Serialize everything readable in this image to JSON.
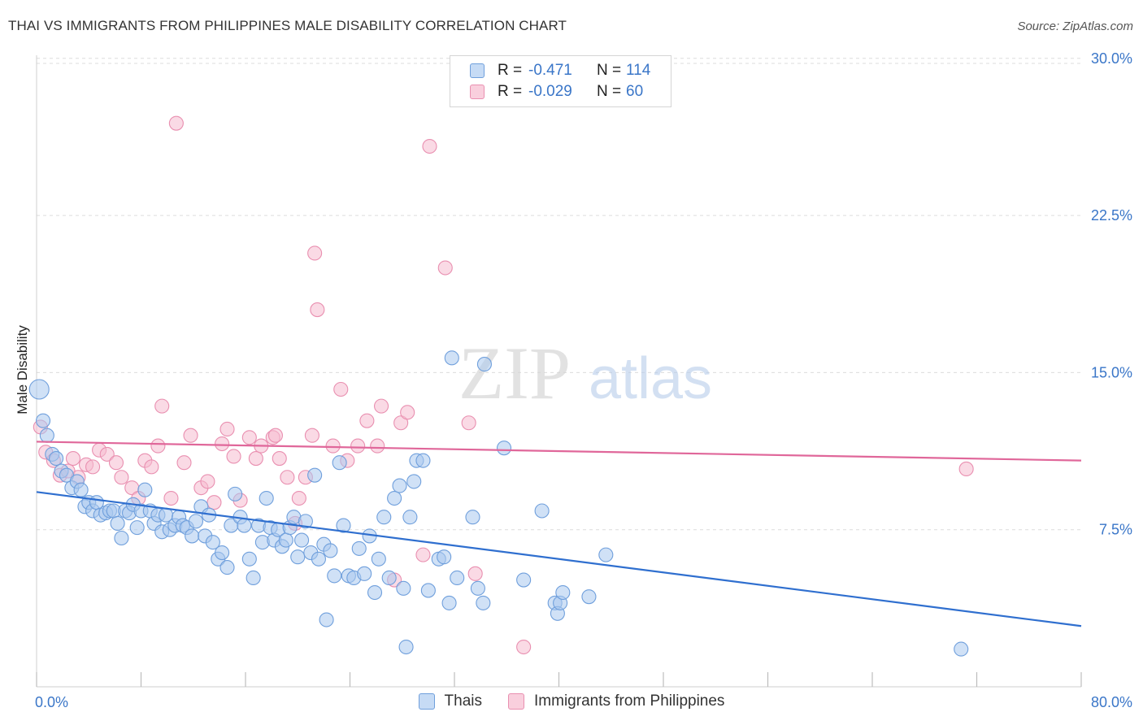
{
  "header": {
    "title": "THAI VS IMMIGRANTS FROM PHILIPPINES MALE DISABILITY CORRELATION CHART",
    "source": "Source: ZipAtlas.com"
  },
  "watermark": {
    "zip": "ZIP",
    "atlas": "atlas"
  },
  "legend": {
    "rows": [
      {
        "r_label": "R =",
        "r_value": "-0.471",
        "n_label": "N =",
        "n_value": "114"
      },
      {
        "r_label": "R =",
        "r_value": "-0.029",
        "n_label": "N =",
        "n_value": "60"
      }
    ]
  },
  "colors": {
    "thais_fill": "#aac8ee",
    "thais_stroke": "#6f9fdc",
    "thais_line": "#2f6fcf",
    "phil_fill": "#f6bcd0",
    "phil_stroke": "#e98fb0",
    "phil_line": "#e0679a",
    "grid": "#dcdcdc",
    "axis_text": "#3a76c8"
  },
  "chart_data": {
    "type": "scatter",
    "title": "THAI VS IMMIGRANTS FROM PHILIPPINES MALE DISABILITY CORRELATION CHART",
    "xlabel": "",
    "ylabel": "Male Disability",
    "xlim": [
      0,
      80
    ],
    "ylim": [
      0,
      31
    ],
    "x_tick_labels": [
      "0.0%",
      "80.0%"
    ],
    "y_ticks": [
      7.5,
      15.0,
      22.5,
      30.0
    ],
    "y_tick_labels": [
      "7.5%",
      "15.0%",
      "22.5%",
      "30.0%"
    ],
    "grid": "horizontal dashed",
    "legend_position": "top-center",
    "series": [
      {
        "name": "Thais",
        "trend": {
          "x": [
            0,
            80
          ],
          "y": [
            9.3,
            2.9
          ]
        },
        "points": [
          [
            0.2,
            14.2
          ],
          [
            0.5,
            12.7
          ],
          [
            0.8,
            12.0
          ],
          [
            1.2,
            11.1
          ],
          [
            1.5,
            10.9
          ],
          [
            1.9,
            10.3
          ],
          [
            2.3,
            10.1
          ],
          [
            2.7,
            9.5
          ],
          [
            3.1,
            9.8
          ],
          [
            3.4,
            9.4
          ],
          [
            3.7,
            8.6
          ],
          [
            4.0,
            8.8
          ],
          [
            4.3,
            8.4
          ],
          [
            4.6,
            8.8
          ],
          [
            4.9,
            8.2
          ],
          [
            5.3,
            8.3
          ],
          [
            5.6,
            8.4
          ],
          [
            5.9,
            8.4
          ],
          [
            6.2,
            7.8
          ],
          [
            6.5,
            7.1
          ],
          [
            6.8,
            8.4
          ],
          [
            7.1,
            8.3
          ],
          [
            7.4,
            8.7
          ],
          [
            7.7,
            7.6
          ],
          [
            8.0,
            8.4
          ],
          [
            8.3,
            9.4
          ],
          [
            8.7,
            8.4
          ],
          [
            9.0,
            7.8
          ],
          [
            9.3,
            8.2
          ],
          [
            9.6,
            7.4
          ],
          [
            9.9,
            8.2
          ],
          [
            10.2,
            7.5
          ],
          [
            10.6,
            7.7
          ],
          [
            10.9,
            8.1
          ],
          [
            11.2,
            7.7
          ],
          [
            11.5,
            7.6
          ],
          [
            11.9,
            7.2
          ],
          [
            12.2,
            7.9
          ],
          [
            12.6,
            8.6
          ],
          [
            12.9,
            7.2
          ],
          [
            13.2,
            8.2
          ],
          [
            13.5,
            6.9
          ],
          [
            13.9,
            6.1
          ],
          [
            14.2,
            6.4
          ],
          [
            14.6,
            5.7
          ],
          [
            14.9,
            7.7
          ],
          [
            15.2,
            9.2
          ],
          [
            15.6,
            8.1
          ],
          [
            15.9,
            7.7
          ],
          [
            16.3,
            6.1
          ],
          [
            16.6,
            5.2
          ],
          [
            17.0,
            7.7
          ],
          [
            17.3,
            6.9
          ],
          [
            17.6,
            9.0
          ],
          [
            17.9,
            7.6
          ],
          [
            18.2,
            7.0
          ],
          [
            18.5,
            7.5
          ],
          [
            18.8,
            6.7
          ],
          [
            19.1,
            7.0
          ],
          [
            19.4,
            7.6
          ],
          [
            19.7,
            8.1
          ],
          [
            20.0,
            6.2
          ],
          [
            20.3,
            7.0
          ],
          [
            20.6,
            7.9
          ],
          [
            21.0,
            6.4
          ],
          [
            21.3,
            10.1
          ],
          [
            21.6,
            6.1
          ],
          [
            22.0,
            6.8
          ],
          [
            22.2,
            3.2
          ],
          [
            22.5,
            6.5
          ],
          [
            22.8,
            5.3
          ],
          [
            23.2,
            10.7
          ],
          [
            23.5,
            7.7
          ],
          [
            23.9,
            5.3
          ],
          [
            24.3,
            5.2
          ],
          [
            24.7,
            6.6
          ],
          [
            25.1,
            5.4
          ],
          [
            25.5,
            7.2
          ],
          [
            25.9,
            4.5
          ],
          [
            26.2,
            6.1
          ],
          [
            26.6,
            8.1
          ],
          [
            27.0,
            5.2
          ],
          [
            27.4,
            9.0
          ],
          [
            27.8,
            9.6
          ],
          [
            28.1,
            4.7
          ],
          [
            28.3,
            1.9
          ],
          [
            28.6,
            8.1
          ],
          [
            28.9,
            9.8
          ],
          [
            29.1,
            10.8
          ],
          [
            29.6,
            10.8
          ],
          [
            30.0,
            4.6
          ],
          [
            30.8,
            6.1
          ],
          [
            31.2,
            6.2
          ],
          [
            31.6,
            4.0
          ],
          [
            31.8,
            15.7
          ],
          [
            32.2,
            5.2
          ],
          [
            33.4,
            8.1
          ],
          [
            33.8,
            4.7
          ],
          [
            34.2,
            4.0
          ],
          [
            34.3,
            15.4
          ],
          [
            35.8,
            11.4
          ],
          [
            37.3,
            5.1
          ],
          [
            38.7,
            8.4
          ],
          [
            39.7,
            4.0
          ],
          [
            39.9,
            3.5
          ],
          [
            40.1,
            4.0
          ],
          [
            40.3,
            4.5
          ],
          [
            42.3,
            4.3
          ],
          [
            43.6,
            6.3
          ],
          [
            70.8,
            1.8
          ]
        ]
      },
      {
        "name": "Immigrants from Philippines",
        "trend": {
          "x": [
            0,
            80
          ],
          "y": [
            11.7,
            10.8
          ]
        },
        "points": [
          [
            0.3,
            12.4
          ],
          [
            0.7,
            11.2
          ],
          [
            1.3,
            10.8
          ],
          [
            1.8,
            10.1
          ],
          [
            2.4,
            10.3
          ],
          [
            2.8,
            10.9
          ],
          [
            3.2,
            10.0
          ],
          [
            3.8,
            10.6
          ],
          [
            4.3,
            10.5
          ],
          [
            4.8,
            11.3
          ],
          [
            5.4,
            11.1
          ],
          [
            6.1,
            10.7
          ],
          [
            6.5,
            10.0
          ],
          [
            7.3,
            9.5
          ],
          [
            7.8,
            9.0
          ],
          [
            8.3,
            10.8
          ],
          [
            8.8,
            10.5
          ],
          [
            9.3,
            11.5
          ],
          [
            9.6,
            13.4
          ],
          [
            10.3,
            9.0
          ],
          [
            10.7,
            26.9
          ],
          [
            11.3,
            10.7
          ],
          [
            11.8,
            12.0
          ],
          [
            12.6,
            9.5
          ],
          [
            13.1,
            9.8
          ],
          [
            13.6,
            8.8
          ],
          [
            14.2,
            11.6
          ],
          [
            14.6,
            12.3
          ],
          [
            15.1,
            11.0
          ],
          [
            15.6,
            8.9
          ],
          [
            16.3,
            11.9
          ],
          [
            16.8,
            10.9
          ],
          [
            17.2,
            11.5
          ],
          [
            18.1,
            11.9
          ],
          [
            18.3,
            12.0
          ],
          [
            18.6,
            10.9
          ],
          [
            19.2,
            10.0
          ],
          [
            19.8,
            7.8
          ],
          [
            20.1,
            9.0
          ],
          [
            20.6,
            10.0
          ],
          [
            21.1,
            12.0
          ],
          [
            21.3,
            20.7
          ],
          [
            21.5,
            18.0
          ],
          [
            22.7,
            11.5
          ],
          [
            23.3,
            14.2
          ],
          [
            23.8,
            10.8
          ],
          [
            24.6,
            11.5
          ],
          [
            25.3,
            12.7
          ],
          [
            26.1,
            11.5
          ],
          [
            26.4,
            13.4
          ],
          [
            27.4,
            5.1
          ],
          [
            27.9,
            12.6
          ],
          [
            28.4,
            13.1
          ],
          [
            29.6,
            6.3
          ],
          [
            30.1,
            25.8
          ],
          [
            31.3,
            20.0
          ],
          [
            33.1,
            12.6
          ],
          [
            33.6,
            5.4
          ],
          [
            37.3,
            1.9
          ],
          [
            71.2,
            10.4
          ]
        ]
      }
    ]
  },
  "bottom_legend": {
    "items": [
      "Thais",
      "Immigrants from Philippines"
    ]
  }
}
